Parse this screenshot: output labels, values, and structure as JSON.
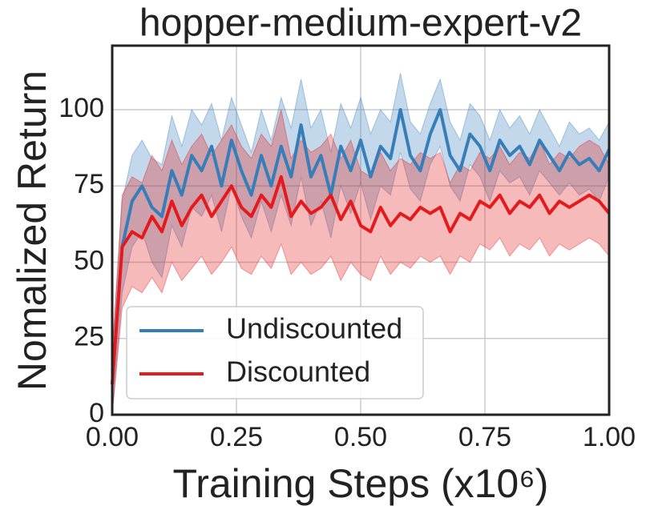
{
  "chart_data": {
    "type": "line",
    "title": "hopper-medium-expert-v2",
    "xlabel": "Training Steps (x10⁶)",
    "ylabel": "Nomalized Return",
    "x": [
      0,
      0.02,
      0.04,
      0.06,
      0.08,
      0.1,
      0.12,
      0.14,
      0.16,
      0.18,
      0.2,
      0.22,
      0.24,
      0.26,
      0.28,
      0.3,
      0.32,
      0.34,
      0.36,
      0.38,
      0.4,
      0.42,
      0.44,
      0.46,
      0.48,
      0.5,
      0.52,
      0.54,
      0.56,
      0.58,
      0.6,
      0.62,
      0.64,
      0.66,
      0.68,
      0.7,
      0.72,
      0.74,
      0.76,
      0.78,
      0.8,
      0.82,
      0.84,
      0.86,
      0.88,
      0.9,
      0.92,
      0.94,
      0.96,
      0.98,
      1.0
    ],
    "series": [
      {
        "name": "Undiscounted",
        "color": "#377eb8",
        "values": [
          10,
          55,
          70,
          75,
          68,
          65,
          80,
          72,
          85,
          80,
          88,
          75,
          90,
          80,
          72,
          85,
          75,
          88,
          78,
          95,
          78,
          85,
          72,
          88,
          80,
          90,
          78,
          88,
          84,
          100,
          85,
          80,
          92,
          100,
          85,
          80,
          92,
          88,
          80,
          90,
          85,
          88,
          82,
          90,
          85,
          80,
          86,
          82,
          84,
          80,
          87
        ],
        "lower": [
          0,
          40,
          55,
          60,
          50,
          45,
          62,
          55,
          68,
          65,
          72,
          60,
          75,
          65,
          58,
          70,
          60,
          72,
          62,
          78,
          62,
          70,
          58,
          75,
          66,
          76,
          64,
          75,
          72,
          86,
          74,
          70,
          82,
          88,
          75,
          70,
          82,
          78,
          70,
          80,
          76,
          78,
          72,
          80,
          76,
          72,
          76,
          72,
          74,
          70,
          78
        ],
        "upper": [
          20,
          70,
          85,
          90,
          84,
          82,
          98,
          88,
          100,
          95,
          102,
          90,
          104,
          95,
          86,
          100,
          90,
          104,
          94,
          110,
          94,
          100,
          86,
          102,
          94,
          104,
          92,
          100,
          96,
          112,
          96,
          92,
          102,
          110,
          96,
          90,
          102,
          98,
          90,
          100,
          94,
          98,
          92,
          100,
          94,
          88,
          96,
          92,
          94,
          90,
          96
        ]
      },
      {
        "name": "Discounted",
        "color": "#e41a1c",
        "values": [
          10,
          55,
          60,
          58,
          65,
          60,
          70,
          62,
          68,
          72,
          65,
          70,
          75,
          68,
          65,
          72,
          68,
          78,
          65,
          70,
          66,
          68,
          72,
          64,
          70,
          62,
          60,
          68,
          62,
          66,
          64,
          68,
          66,
          68,
          60,
          66,
          64,
          70,
          68,
          72,
          66,
          70,
          68,
          72,
          66,
          70,
          68,
          70,
          72,
          70,
          66
        ],
        "lower": [
          0,
          35,
          42,
          40,
          45,
          40,
          50,
          44,
          48,
          52,
          46,
          50,
          55,
          48,
          46,
          52,
          48,
          56,
          46,
          50,
          46,
          48,
          52,
          44,
          50,
          46,
          44,
          52,
          46,
          50,
          48,
          52,
          50,
          52,
          46,
          52,
          50,
          56,
          54,
          58,
          52,
          56,
          54,
          58,
          52,
          56,
          54,
          56,
          58,
          56,
          52
        ],
        "upper": [
          20,
          72,
          78,
          76,
          85,
          80,
          90,
          82,
          88,
          92,
          85,
          90,
          95,
          88,
          84,
          92,
          88,
          100,
          84,
          90,
          86,
          88,
          92,
          84,
          90,
          80,
          78,
          86,
          80,
          84,
          82,
          86,
          84,
          86,
          76,
          82,
          80,
          86,
          84,
          88,
          82,
          86,
          84,
          90,
          82,
          86,
          84,
          88,
          90,
          88,
          82
        ]
      }
    ],
    "xlim": [
      0,
      1
    ],
    "ylim": [
      0,
      121
    ],
    "xticks": [
      {
        "value": 0,
        "label": "0.00"
      },
      {
        "value": 0.25,
        "label": "0.25"
      },
      {
        "value": 0.5,
        "label": "0.50"
      },
      {
        "value": 0.75,
        "label": "0.75"
      },
      {
        "value": 1,
        "label": "1.00"
      }
    ],
    "yticks": [
      0,
      25,
      50,
      75,
      100
    ],
    "grid": true,
    "legend": "lower left"
  }
}
